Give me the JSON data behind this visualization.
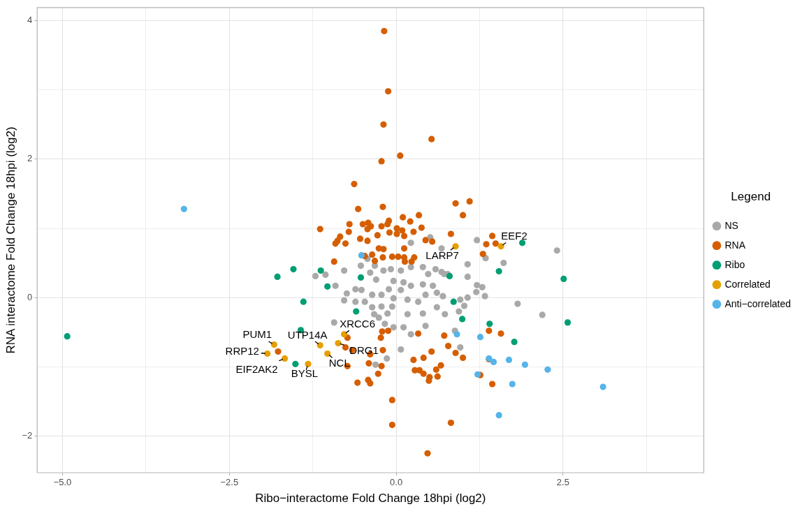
{
  "chart_data": {
    "type": "scatter",
    "xlabel": "Ribo−interactome Fold Change 18hpi (log2)",
    "ylabel": "RNA interactome Fold Change 18hpi (log2)",
    "legend_title": "Legend",
    "legend": "right",
    "grid": true,
    "marker": "circle",
    "xlim": [
      -5.38,
      4.61
    ],
    "ylim": [
      -2.53,
      4.19
    ],
    "xticks": [
      {
        "value": -5,
        "label": "−5.0"
      },
      {
        "value": -3.75,
        "label": null
      },
      {
        "value": -2.5,
        "label": "−2.5"
      },
      {
        "value": -1.25,
        "label": null
      },
      {
        "value": 0,
        "label": "0.0"
      },
      {
        "value": 1.25,
        "label": null
      },
      {
        "value": 2.5,
        "label": "2.5"
      },
      {
        "value": 3.75,
        "label": null
      }
    ],
    "yticks": [
      {
        "value": -2,
        "label": "−2"
      },
      {
        "value": -1,
        "label": null
      },
      0,
      {
        "value": 1,
        "label": null
      },
      2,
      {
        "value": 3,
        "label": null
      },
      4
    ],
    "series": [
      {
        "name": "NS",
        "color": "#a9a9a9",
        "x": [
          0.51,
          0.22,
          0.68,
          -0.53,
          -0.43,
          -0.78,
          -1.06,
          -0.32,
          -0.39,
          -0.3,
          -0.19,
          -0.08,
          0.07,
          0.22,
          0.4,
          0.59,
          0.48,
          0.72,
          0.11,
          0.22,
          0.4,
          0.55,
          0.61,
          0.7,
          0.07,
          -0.04,
          -0.11,
          -0.22,
          -0.36,
          -0.52,
          -0.61,
          -0.74,
          -0.91,
          -0.78,
          -0.61,
          -0.47,
          -0.36,
          -0.22,
          -0.06,
          -0.04,
          0.17,
          0.33,
          0.44,
          0.4,
          0.61,
          0.17,
          -0.13,
          -0.26,
          -0.33,
          -0.17,
          -0.04,
          0.11,
          0.22,
          -0.93,
          1.21,
          1.34,
          1.61,
          2.41,
          1.07,
          1.07,
          1.21,
          1.29,
          1.2,
          1.33,
          1.07,
          0.96,
          1.02,
          0.94,
          0.73,
          1.82,
          2.19,
          0.88,
          0.68,
          0.77,
          0.96,
          -0.14,
          -0.31,
          0.07,
          0.44,
          -1.21
        ],
        "values": [
          0.87,
          0.79,
          0.71,
          0.46,
          0.56,
          0.39,
          0.33,
          0.46,
          0.36,
          0.26,
          0.39,
          0.41,
          0.39,
          0.44,
          0.44,
          0.41,
          0.34,
          0.34,
          0.22,
          0.17,
          0.19,
          0.17,
          0.07,
          0.02,
          0.11,
          0.24,
          0.12,
          0.04,
          0.04,
          0.11,
          0.12,
          0.06,
          0.17,
          -0.04,
          -0.06,
          -0.06,
          -0.14,
          -0.13,
          -0.13,
          -0.01,
          -0.03,
          -0.06,
          0.04,
          -0.23,
          -0.14,
          -0.24,
          -0.23,
          -0.29,
          -0.24,
          -0.38,
          -0.43,
          -0.43,
          -0.53,
          -0.36,
          0.83,
          0.57,
          0.5,
          0.68,
          0.48,
          0.3,
          0.18,
          0.15,
          0.08,
          0.02,
          0,
          -0.03,
          -0.12,
          -0.2,
          -0.24,
          -0.09,
          -0.25,
          -0.48,
          0.37,
          0.34,
          -0.72,
          -0.88,
          -0.97,
          -0.75,
          -0.41,
          0.31
        ]
      },
      {
        "name": "RNA",
        "color": "#d55e00",
        "x": [
          -0.18,
          -0.12,
          -0.19,
          0.53,
          0.06,
          -0.22,
          -0.63,
          -0.57,
          -0.2,
          0.89,
          1.1,
          1,
          -1.14,
          -0.7,
          -0.5,
          -0.42,
          -0.38,
          -0.22,
          -0.11,
          -0.13,
          0.1,
          0.34,
          0.21,
          0.38,
          0.01,
          0.09,
          0.26,
          -0.71,
          -0.43,
          -0.1,
          0.01,
          -0.28,
          -0.84,
          -0.88,
          -0.91,
          -0.76,
          -0.54,
          -0.43,
          0.12,
          0.44,
          0.54,
          0.82,
          -0.93,
          -0.26,
          -0.19,
          -0.47,
          -0.36,
          -0.32,
          -0.2,
          -0.06,
          0.03,
          0.12,
          0.27,
          0.13,
          0.23,
          0.12,
          1.44,
          1.35,
          1.49,
          1.3,
          -0.73,
          -0.76,
          -0.66,
          -0.2,
          -0.39,
          -1.77,
          -0.21,
          -0.12,
          -0.23,
          0.33,
          0.53,
          0.41,
          0.26,
          -0.73,
          -0.41,
          -0.22,
          -0.27,
          0.28,
          0.35,
          0.41,
          0.5,
          0.49,
          -0.58,
          -0.42,
          -0.39,
          -0.06,
          -0.06,
          0.72,
          0.78,
          0.89,
          1,
          0.67,
          0.6,
          0.62,
          1.39,
          1.57,
          1.39,
          1.26,
          1.44,
          0.82,
          0.47
        ],
        "values": [
          3.85,
          2.98,
          2.5,
          2.29,
          2.05,
          1.97,
          1.64,
          1.28,
          1.31,
          1.36,
          1.39,
          1.19,
          0.99,
          1.06,
          1.06,
          1.08,
          1.03,
          1.03,
          1.11,
          1.06,
          1.16,
          1.19,
          1.1,
          1.01,
          1,
          0.97,
          0.95,
          0.95,
          0.99,
          0.94,
          0.92,
          0.9,
          0.88,
          0.82,
          0.78,
          0.78,
          0.85,
          0.82,
          0.89,
          0.83,
          0.81,
          0.92,
          0.52,
          0.71,
          0.7,
          0.6,
          0.62,
          0.53,
          0.58,
          0.59,
          0.59,
          0.58,
          0.58,
          0.52,
          0.52,
          0.71,
          0.89,
          0.77,
          0.78,
          0.63,
          -0.58,
          -0.72,
          -0.76,
          -0.76,
          -0.82,
          -0.78,
          -0.49,
          -0.48,
          -0.58,
          -0.52,
          -0.78,
          -0.87,
          -0.9,
          -0.99,
          -0.95,
          -0.99,
          -1.1,
          -1.05,
          -1.05,
          -1.1,
          -1.15,
          -1.2,
          -1.23,
          -1.19,
          -1.24,
          -1.48,
          -1.84,
          -0.55,
          -0.7,
          -0.8,
          -0.87,
          -0.98,
          -1.04,
          -1.14,
          -0.48,
          -0.52,
          -0.89,
          -1.12,
          -1.25,
          -1.81,
          -2.25
        ]
      },
      {
        "name": "Ribo",
        "color": "#009e73",
        "x": [
          -4.93,
          -1.78,
          -1.54,
          -1.13,
          -1.03,
          -1.39,
          -1.43,
          -1.51,
          -0.6,
          -0.53,
          0.8,
          1.89,
          1.54,
          2.51,
          0.86,
          0.99,
          2.57,
          1.77,
          1.4
        ],
        "values": [
          -0.56,
          0.3,
          0.41,
          0.39,
          0.16,
          -0.06,
          -0.47,
          -0.96,
          -0.2,
          0.29,
          0.31,
          0.79,
          0.38,
          0.27,
          -0.06,
          -0.31,
          -0.36,
          -0.64,
          -0.38
        ]
      },
      {
        "name": "Correlated",
        "color": "#e69f00",
        "x": [
          -1.83,
          -1.93,
          -1.67,
          -1.32,
          -1.14,
          -1.03,
          -0.87,
          -0.78,
          0.89,
          1.57
        ],
        "values": [
          -0.68,
          -0.81,
          -0.88,
          -0.96,
          -0.69,
          -0.81,
          -0.66,
          -0.53,
          0.74,
          0.74
        ]
      },
      {
        "name": "Anti−correlated",
        "color": "#56b4e9",
        "x": [
          -3.18,
          -0.52,
          0.91,
          1.26,
          1.39,
          1.46,
          1.69,
          1.93,
          2.27,
          1.22,
          1.74,
          3.1,
          1.54
        ],
        "values": [
          1.28,
          0.61,
          -0.53,
          -0.57,
          -0.88,
          -0.93,
          -0.9,
          -0.97,
          -1.04,
          -1.11,
          -1.25,
          -1.29,
          -1.7
        ]
      }
    ],
    "annotations": [
      {
        "text": "PUM1",
        "x": -1.83,
        "y": -0.68
      },
      {
        "text": "RRP12",
        "x": -1.93,
        "y": -0.81
      },
      {
        "text": "EIF2AK2",
        "x": -1.67,
        "y": -0.88
      },
      {
        "text": "BYSL",
        "x": -1.32,
        "y": -0.96
      },
      {
        "text": "UTP14A",
        "x": -1.14,
        "y": -0.69
      },
      {
        "text": "NCL",
        "x": -1.03,
        "y": -0.81
      },
      {
        "text": "DRG1",
        "x": -0.87,
        "y": -0.66
      },
      {
        "text": "XRCC6",
        "x": -0.78,
        "y": -0.53
      },
      {
        "text": "LARP7",
        "x": 0.89,
        "y": 0.74
      },
      {
        "text": "EEF2",
        "x": 1.57,
        "y": 0.74
      }
    ]
  }
}
